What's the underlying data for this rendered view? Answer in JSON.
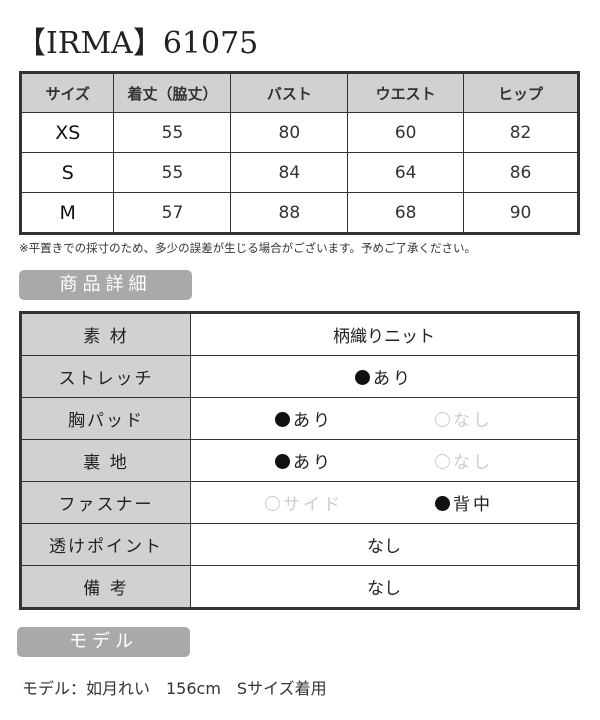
{
  "title": "【IRMA】61075",
  "size_table": {
    "headers": [
      "サイズ",
      "着丈（脇丈）",
      "バスト",
      "ウエスト",
      "ヒップ"
    ],
    "rows": [
      [
        "XS",
        "55",
        "80",
        "60",
        "82"
      ],
      [
        "S",
        "55",
        "84",
        "64",
        "86"
      ],
      [
        "M",
        "57",
        "88",
        "68",
        "90"
      ]
    ]
  },
  "note": "※平置きでの採寸のため、多少の誤差が生じる場合がございます。予めご了承ください。",
  "detail_badge": "商品詳細",
  "details": [
    {
      "label": "素 材",
      "value": "柄織りニット"
    },
    {
      "label": "ストレッチ",
      "options": [
        {
          "text": "あり",
          "selected": true
        }
      ]
    },
    {
      "label": "胸パッド",
      "options": [
        {
          "text": "あり",
          "selected": true
        },
        {
          "text": "なし",
          "selected": false
        }
      ]
    },
    {
      "label": "裏 地",
      "options": [
        {
          "text": "あり",
          "selected": true
        },
        {
          "text": "なし",
          "selected": false
        }
      ]
    },
    {
      "label": "ファスナー",
      "options": [
        {
          "text": "サイド",
          "selected": false
        },
        {
          "text": "背中",
          "selected": true
        }
      ]
    },
    {
      "label": "透けポイント",
      "value": "なし"
    },
    {
      "label": "備 考",
      "value": "なし"
    }
  ],
  "model_badge": "モデル",
  "model_text": "モデル：如月れい　156cm　Sサイズ着用"
}
